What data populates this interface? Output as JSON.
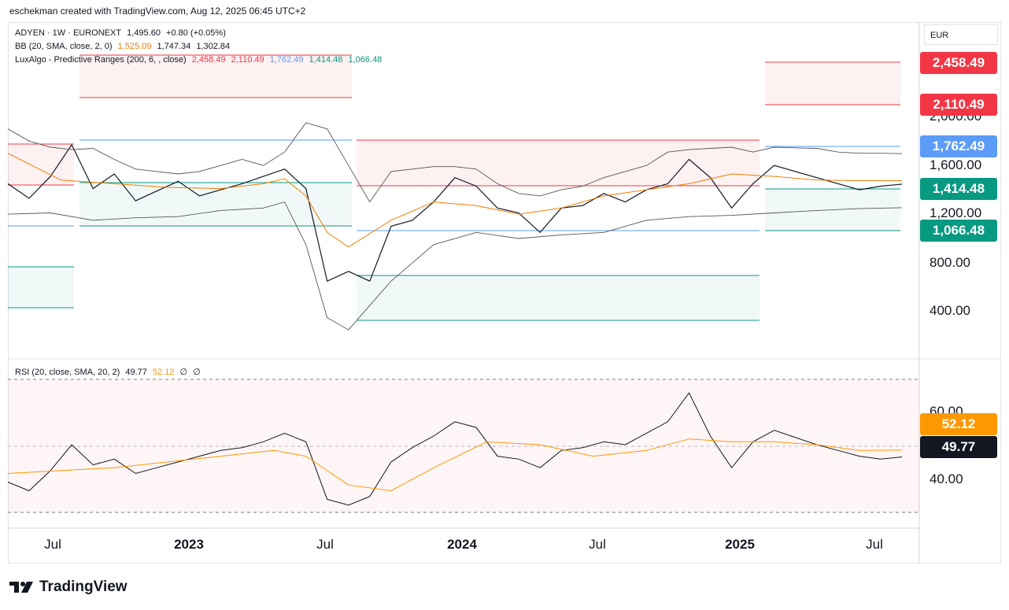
{
  "header": {
    "attribution": "eschekman created with TradingView.com, Aug 12, 2025 06:45 UTC+2"
  },
  "brand": {
    "name": "TradingView"
  },
  "currency": "EUR",
  "legend": {
    "symbol": "ADYEN · 1W · EURONEXT",
    "price": "1,495.60",
    "change": "+0.80 (+0.05%)",
    "bb_label": "BB (20, SMA, close, 2, 0)",
    "bb_basis": "1,525.09",
    "bb_upper": "1,747.34",
    "bb_lower": "1,302.84",
    "lux_label": "LuxAlgo - Predictive Ranges (200, 6, , close)",
    "lux_r2": "2,458.49",
    "lux_r1": "2,110.49",
    "lux_avg": "1,762.49",
    "lux_s1": "1,414.48",
    "lux_s2": "1,066.48",
    "rsi_label": "RSI (20, close, SMA, 20, 2)",
    "rsi_value": "49.77",
    "rsi_ma": "52.12",
    "rsi_extra1": "∅",
    "rsi_extra2": "∅"
  },
  "price_axis": {
    "ticks": [
      "2,000.00",
      "1,600.00",
      "1,200.00",
      "800.00",
      "400.00"
    ]
  },
  "rsi_axis": {
    "ticks": [
      "60.00",
      "40.00"
    ]
  },
  "price_labels": [
    {
      "text": "2,458.49",
      "color": "#f23645"
    },
    {
      "text": "2,110.49",
      "color": "#f23645"
    },
    {
      "text": "1,762.49",
      "color": "#5b9cf6"
    },
    {
      "text": "1,414.48",
      "color": "#089981"
    },
    {
      "text": "1,066.48",
      "color": "#089981"
    }
  ],
  "rsi_labels": [
    {
      "text": "52.12",
      "color": "#ff9800"
    },
    {
      "text": "49.77",
      "color": "#131722"
    }
  ],
  "time_axis": [
    "Jul",
    "2023",
    "Jul",
    "2024",
    "Jul",
    "2025",
    "Jul"
  ],
  "colors": {
    "resistance": "#f23645",
    "average": "#5b9cf6",
    "support": "#089981",
    "bb_basis": "#f57c00",
    "price_line": "#131722",
    "bb_band": "#555555",
    "rsi_ma": "#ff9800"
  },
  "chart_data": [
    {
      "type": "line",
      "title": "ADYEN · 1W · EURONEXT",
      "x_unit": "weeks (2022-05 to 2025-08)",
      "ylim": [
        100,
        2750
      ],
      "series": [
        {
          "name": "ADYEN",
          "x": [
            0,
            4,
            8,
            12,
            16,
            20,
            24,
            28,
            32,
            36,
            40,
            44,
            48,
            52,
            56,
            60,
            64,
            68,
            72,
            76,
            80,
            84,
            88,
            92,
            96,
            100,
            104,
            108,
            112,
            116,
            120,
            124,
            128,
            132,
            136,
            140,
            144,
            152,
            156,
            160,
            164,
            168
          ],
          "values": [
            1500,
            1380,
            1560,
            1820,
            1460,
            1580,
            1360,
            1440,
            1520,
            1400,
            1450,
            1500,
            1560,
            1620,
            1460,
            700,
            780,
            700,
            1150,
            1200,
            1350,
            1550,
            1480,
            1300,
            1260,
            1100,
            1300,
            1320,
            1420,
            1350,
            1450,
            1500,
            1700,
            1550,
            1300,
            1500,
            1650,
            1550,
            1500,
            1450,
            1480,
            1496
          ]
        },
        {
          "name": "BB basis",
          "x": [
            0,
            10,
            20,
            30,
            40,
            48,
            52,
            56,
            60,
            64,
            72,
            80,
            88,
            96,
            104,
            112,
            120,
            128,
            136,
            144,
            152,
            160,
            168
          ],
          "values": [
            1750,
            1530,
            1500,
            1470,
            1460,
            1500,
            1540,
            1400,
            1100,
            980,
            1200,
            1350,
            1320,
            1250,
            1300,
            1400,
            1450,
            1500,
            1580,
            1560,
            1530,
            1525,
            1525
          ]
        },
        {
          "name": "BB upper",
          "x": [
            0,
            4,
            8,
            12,
            16,
            20,
            24,
            28,
            32,
            36,
            40,
            44,
            48,
            52,
            56,
            60,
            64,
            68,
            72,
            76,
            80,
            84,
            88,
            92,
            96,
            100,
            104,
            108,
            112,
            116,
            120,
            124,
            128,
            132,
            136,
            140,
            144,
            152,
            156,
            160,
            164,
            168
          ],
          "values": [
            1950,
            1850,
            1800,
            1780,
            1790,
            1700,
            1620,
            1600,
            1580,
            1600,
            1650,
            1700,
            1650,
            1760,
            2000,
            1950,
            1650,
            1350,
            1600,
            1620,
            1640,
            1640,
            1620,
            1500,
            1420,
            1400,
            1450,
            1480,
            1550,
            1600,
            1650,
            1760,
            1780,
            1790,
            1800,
            1760,
            1800,
            1790,
            1760,
            1750,
            1750,
            1747
          ]
        },
        {
          "name": "BB lower",
          "x": [
            0,
            8,
            16,
            24,
            32,
            40,
            48,
            52,
            56,
            60,
            64,
            68,
            72,
            80,
            88,
            96,
            104,
            112,
            120,
            128,
            136,
            144,
            152,
            160,
            168
          ],
          "values": [
            1250,
            1260,
            1200,
            1220,
            1230,
            1280,
            1300,
            1350,
            1000,
            400,
            300,
            500,
            700,
            1000,
            1100,
            1050,
            1080,
            1100,
            1200,
            1230,
            1240,
            1260,
            1280,
            1295,
            1303
          ]
        }
      ]
    },
    {
      "type": "line",
      "title": "RSI (20, close, SMA, 20, 2)",
      "ylim": [
        28,
        80
      ],
      "series": [
        {
          "name": "RSI",
          "x": [
            0,
            4,
            8,
            12,
            16,
            20,
            24,
            28,
            32,
            36,
            40,
            44,
            48,
            52,
            56,
            60,
            64,
            68,
            72,
            76,
            80,
            84,
            88,
            92,
            96,
            100,
            104,
            108,
            112,
            116,
            120,
            124,
            128,
            132,
            136,
            140,
            144,
            152,
            156,
            160,
            164,
            168
          ],
          "values": [
            41,
            38,
            45,
            54,
            47,
            49,
            44,
            46,
            48,
            50,
            52,
            53,
            55,
            58,
            55,
            35,
            33,
            36,
            48,
            53,
            57,
            62,
            60,
            50,
            49,
            46,
            52,
            53,
            55,
            54,
            58,
            62,
            72,
            57,
            46,
            55,
            59,
            54,
            52,
            50,
            49,
            49.77
          ]
        },
        {
          "name": "RSI MA",
          "x": [
            0,
            10,
            20,
            30,
            40,
            50,
            56,
            64,
            72,
            80,
            90,
            100,
            110,
            120,
            128,
            136,
            144,
            152,
            160,
            168
          ],
          "values": [
            44,
            45,
            46,
            48,
            50,
            52,
            50,
            40,
            38,
            46,
            55,
            54,
            50,
            52,
            56,
            55,
            55,
            54,
            52,
            52.12
          ]
        }
      ]
    }
  ]
}
